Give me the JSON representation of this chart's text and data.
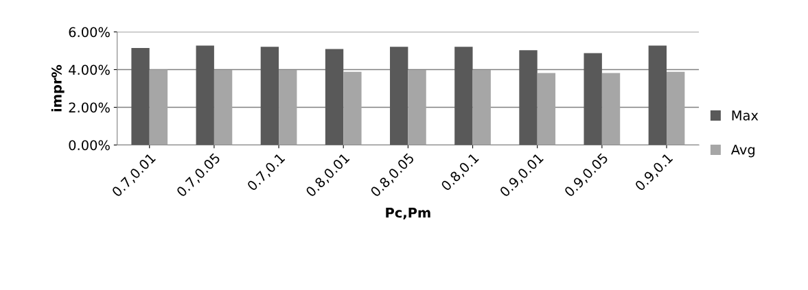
{
  "chart_data": {
    "type": "bar",
    "xlabel": "Pc,Pm",
    "ylabel": "impr%",
    "categories": [
      "0.7,0.01",
      "0.7,0.05",
      "0.7,0.1",
      "0.8,0.01",
      "0.8,0.05",
      "0.8,0.1",
      "0.9,0.01",
      "0.9,0.05",
      "0.9,0.1"
    ],
    "series": [
      {
        "name": "Max",
        "color": "#595959",
        "values": [
          5.15,
          5.27,
          5.21,
          5.09,
          5.21,
          5.21,
          5.03,
          4.87,
          5.27
        ]
      },
      {
        "name": "Avg",
        "color": "#a6a6a6",
        "values": [
          4.0,
          3.98,
          3.98,
          3.88,
          3.98,
          3.98,
          3.82,
          3.82,
          3.88
        ]
      }
    ],
    "ylim": [
      0,
      6
    ],
    "yticks": [
      {
        "value": 0,
        "label": "0.00%"
      },
      {
        "value": 2,
        "label": "2.00%"
      },
      {
        "value": 4,
        "label": "4.00%"
      },
      {
        "value": 6,
        "label": "6.00%"
      }
    ],
    "grid": "y",
    "legend": "right"
  }
}
